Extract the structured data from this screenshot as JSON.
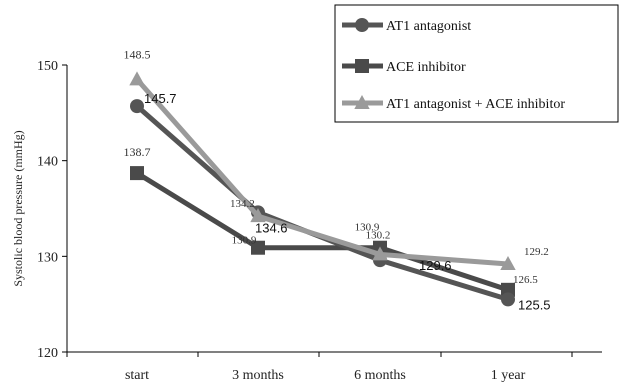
{
  "chart_data": {
    "type": "line",
    "ylabel": "Systolic blood pressure (mmHg)",
    "xlabel": "",
    "categories": [
      "start",
      "3 months",
      "6 months",
      "1 year"
    ],
    "ylim": [
      120,
      150
    ],
    "yticks": [
      120,
      130,
      140,
      150
    ],
    "grid": false,
    "legend_position": "top-right",
    "series": [
      {
        "name": "AT1 antagonist",
        "marker": "circle",
        "color": "#555555",
        "values": [
          145.7,
          134.6,
          129.6,
          125.5
        ],
        "labels": [
          "145.7",
          "134.6",
          "129.6",
          "125.5"
        ]
      },
      {
        "name": "ACE inhibitor",
        "marker": "square",
        "color": "#4a4a4a",
        "values": [
          138.7,
          130.9,
          130.9,
          126.5
        ],
        "labels": [
          "138.7",
          "130.9",
          "130.9",
          "126.5"
        ]
      },
      {
        "name": "AT1 antagonist + ACE inhibitor",
        "marker": "triangle",
        "color": "#9a9a9a",
        "values": [
          148.5,
          134.2,
          130.2,
          129.2
        ],
        "labels": [
          "148.5",
          "134.2",
          "130.2",
          "129.2"
        ]
      }
    ]
  }
}
